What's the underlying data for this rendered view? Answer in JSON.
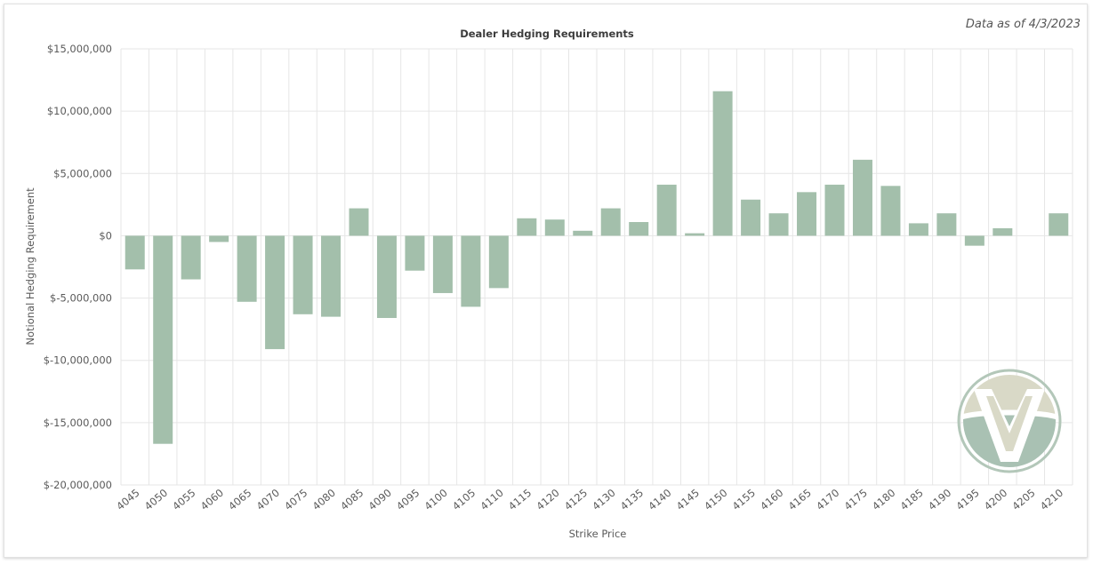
{
  "data_as_of": "Data as of 4/3/2023",
  "chart_data": {
    "type": "bar",
    "title": "Dealer Hedging Requirements",
    "xlabel": "Strike Price",
    "ylabel": "Notional Hedging Requirement",
    "ylim": [
      -20000000,
      15000000
    ],
    "yticks": [
      15000000,
      10000000,
      5000000,
      0,
      -5000000,
      -10000000,
      -15000000,
      -20000000
    ],
    "ytick_labels": [
      "$15,000,000",
      "$10,000,000",
      "$5,000,000",
      "$0",
      "$-5,000,000",
      "$-10,000,000",
      "$-15,000,000",
      "$-20,000,000"
    ],
    "categories": [
      "4045",
      "4050",
      "4055",
      "4060",
      "4065",
      "4070",
      "4075",
      "4080",
      "4085",
      "4090",
      "4095",
      "4100",
      "4105",
      "4110",
      "4115",
      "4120",
      "4125",
      "4130",
      "4135",
      "4140",
      "4145",
      "4150",
      "4155",
      "4160",
      "4165",
      "4170",
      "4175",
      "4180",
      "4185",
      "4190",
      "4195",
      "4200",
      "4205",
      "4210"
    ],
    "values": [
      -2700000,
      -16700000,
      -3500000,
      -500000,
      -5300000,
      -9100000,
      -6300000,
      -6500000,
      2200000,
      -6600000,
      -2800000,
      -4600000,
      -5700000,
      -4200000,
      1400000,
      1300000,
      400000,
      2200000,
      1100000,
      4100000,
      200000,
      11600000,
      2900000,
      1800000,
      3500000,
      4100000,
      6100000,
      4000000,
      1000000,
      1800000,
      -800000,
      600000,
      0,
      1800000
    ],
    "grid": true,
    "legend": "none"
  },
  "colors": {
    "bar": "#a3bfab",
    "grid": "#e6e6e6",
    "logo_light": "#d9d9c7",
    "logo_dark": "#a9c1b3",
    "logo_ring": "#b3c7b9"
  },
  "logo": {
    "icon": "brand-logo-icon"
  }
}
